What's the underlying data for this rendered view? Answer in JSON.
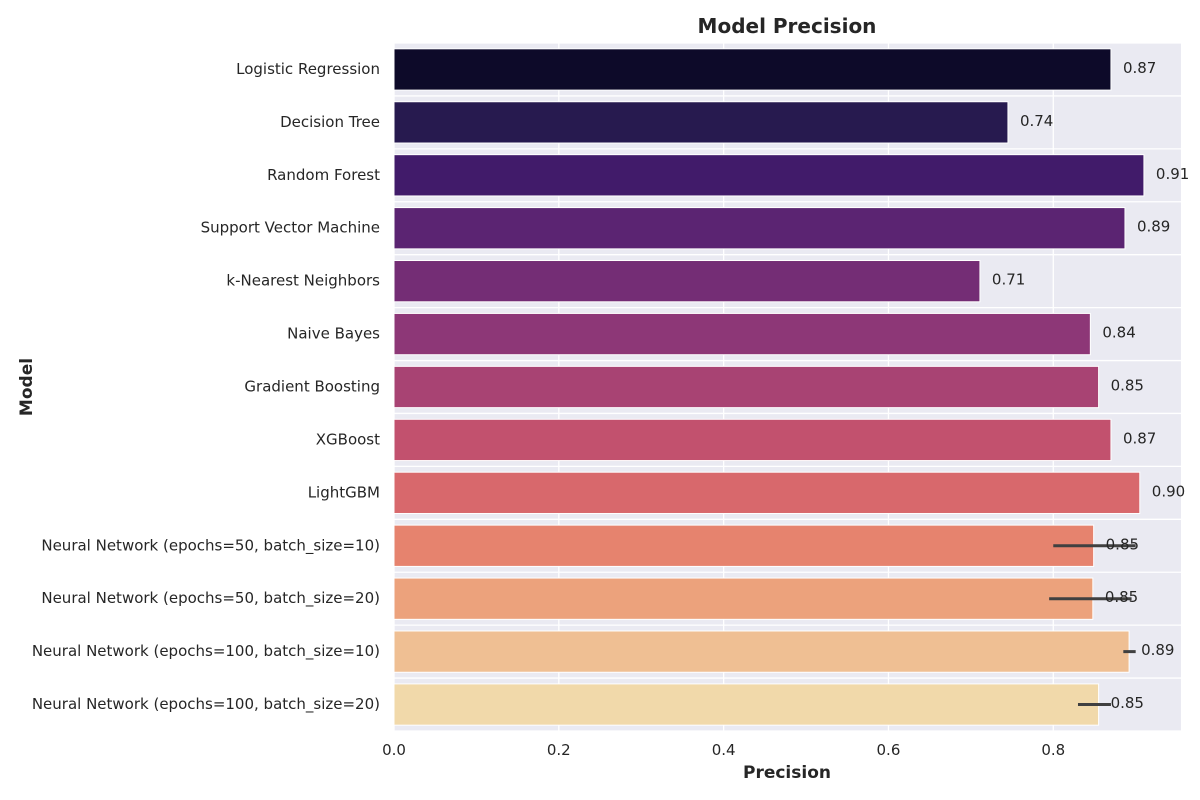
{
  "chart_data": {
    "type": "bar",
    "orientation": "horizontal",
    "title": "Model Precision",
    "xlabel": "Precision",
    "ylabel": "Model",
    "xlim": [
      0,
      0.955
    ],
    "xticks": [
      0.0,
      0.2,
      0.4,
      0.6,
      0.8
    ],
    "xtick_labels": [
      "0.0",
      "0.2",
      "0.4",
      "0.6",
      "0.8"
    ],
    "grid": true,
    "categories": [
      "Logistic Regression",
      "Decision Tree",
      "Random Forest",
      "Support Vector Machine",
      "k-Nearest Neighbors",
      "Naive Bayes",
      "Gradient Boosting",
      "XGBoost",
      "LightGBM",
      "Neural Network (epochs=50, batch_size=10)",
      "Neural Network (epochs=50, batch_size=20)",
      "Neural Network (epochs=100, batch_size=10)",
      "Neural Network (epochs=100, batch_size=20)"
    ],
    "values": [
      0.87,
      0.745,
      0.91,
      0.887,
      0.711,
      0.845,
      0.855,
      0.87,
      0.905,
      0.849,
      0.848,
      0.892,
      0.855
    ],
    "value_labels": [
      "0.87",
      "0.74",
      "0.91",
      "0.89",
      "0.71",
      "0.84",
      "0.85",
      "0.87",
      "0.90",
      "0.85",
      "0.85",
      "0.89",
      "0.85"
    ],
    "error_bars": [
      null,
      null,
      null,
      null,
      null,
      null,
      null,
      null,
      null,
      [
        0.8,
        0.9
      ],
      [
        0.795,
        0.895
      ],
      [
        0.885,
        0.9
      ],
      [
        0.83,
        0.87
      ]
    ],
    "colors": [
      "#0d0a29",
      "#271a4f",
      "#411b6a",
      "#5b2472",
      "#742d75",
      "#8d3777",
      "#a84373",
      "#c2516e",
      "#d8686c",
      "#e6836e",
      "#eca27c",
      "#efbf93",
      "#f1d9aa"
    ],
    "palette": "magma"
  },
  "style": {
    "background": "#ffffff",
    "plot_background": "#eaeaf2",
    "grid_color": "#ffffff",
    "text_color": "#262626",
    "error_color": "#404040"
  }
}
